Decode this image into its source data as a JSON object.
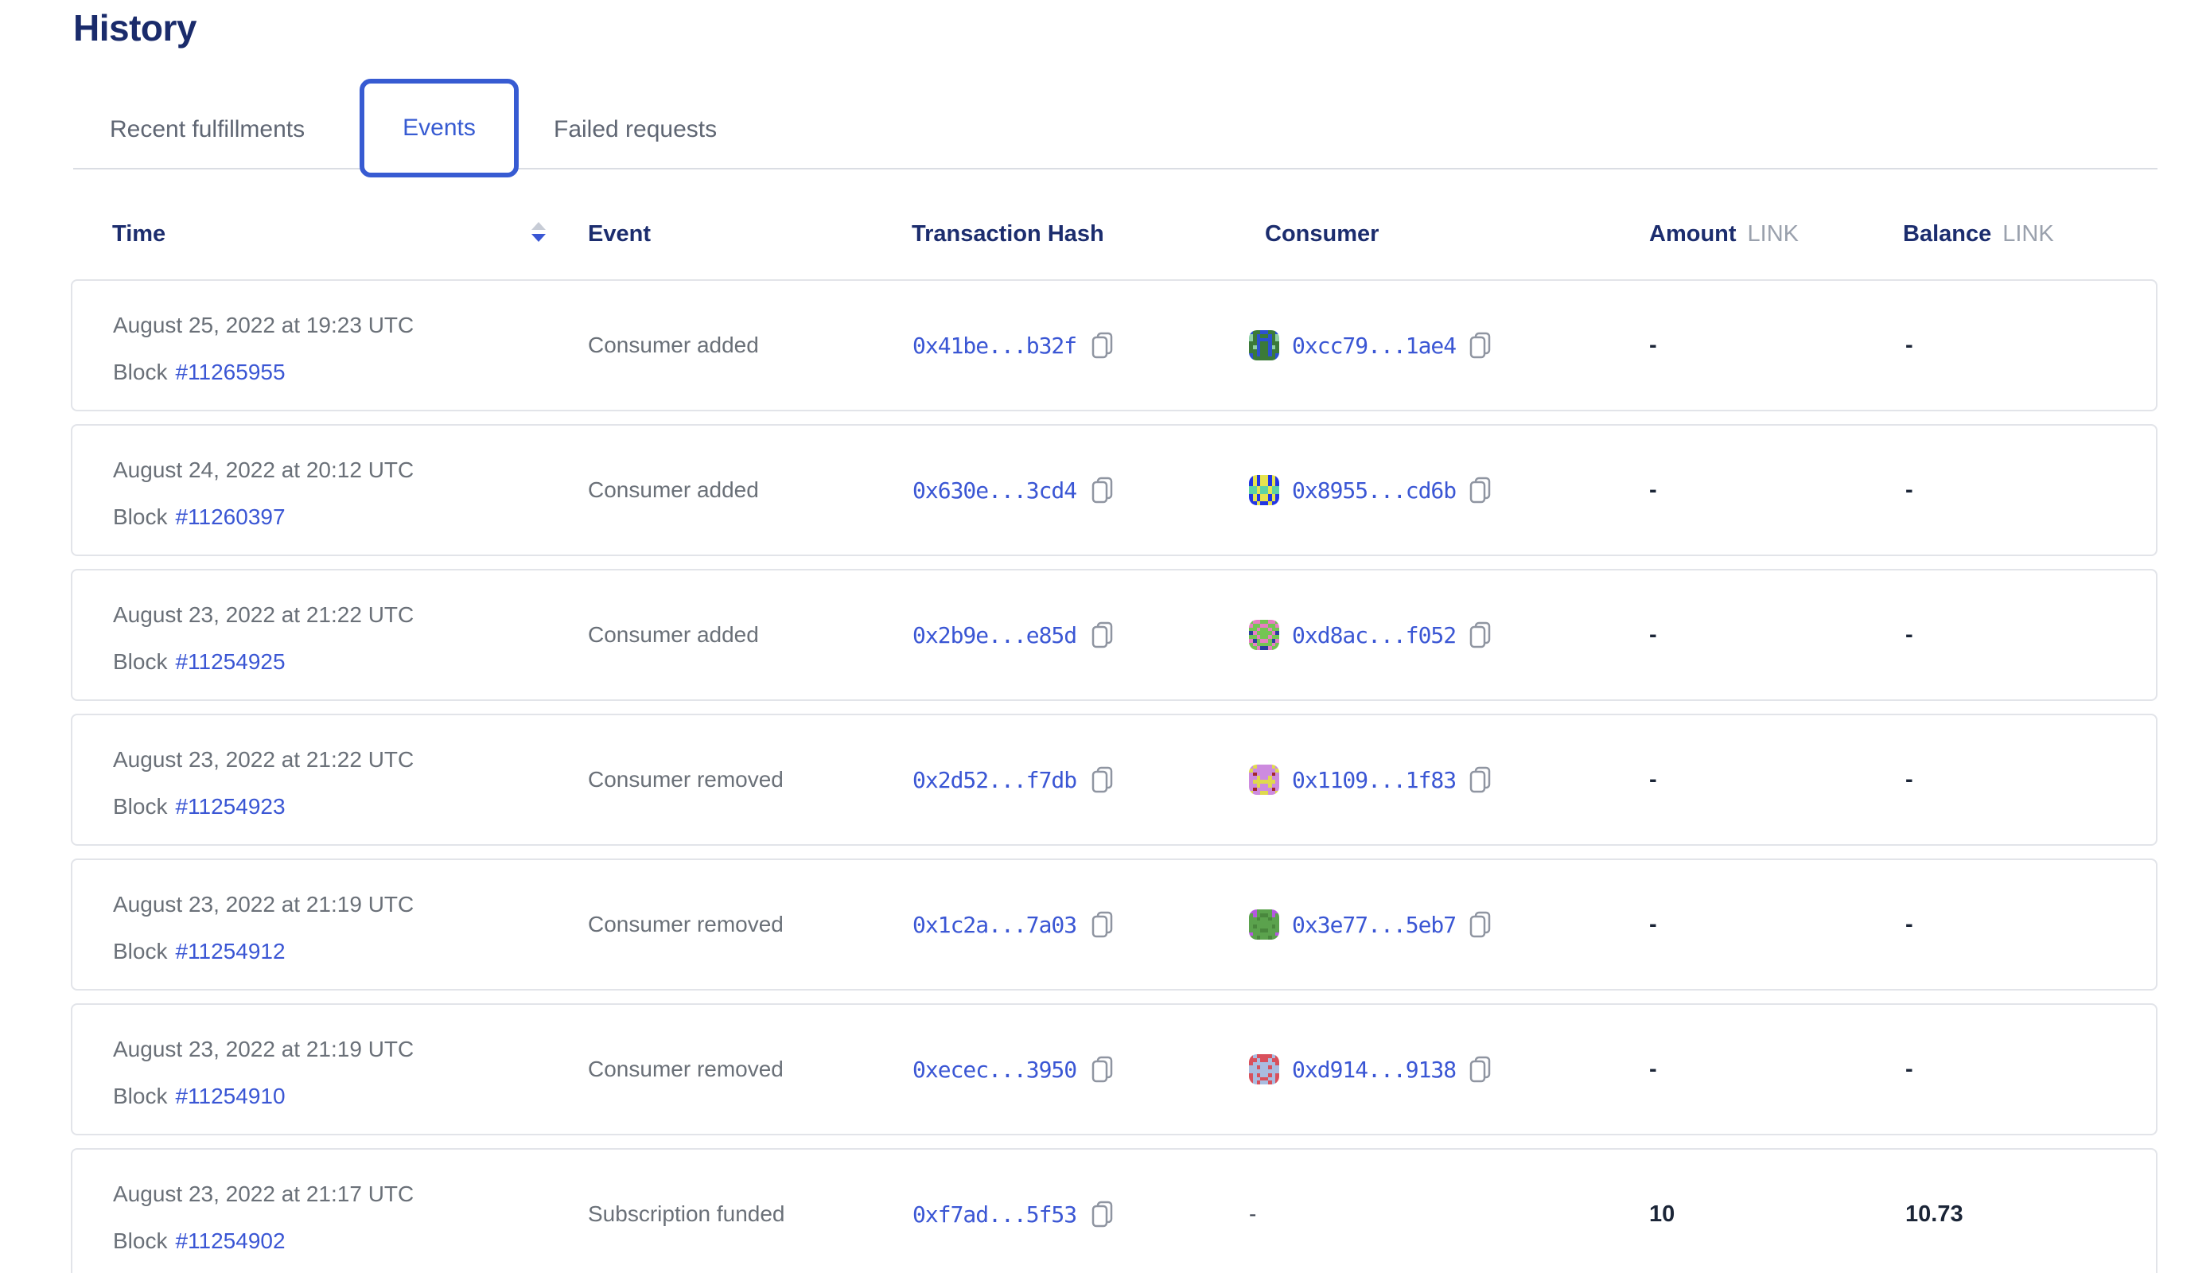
{
  "page": {
    "title": "History"
  },
  "colors": {
    "accent_blue": "#375bd2",
    "link_blue": "#3a56d4",
    "heading_navy": "#1a2b6b",
    "text_gray": "#6a7078",
    "card_border": "#e2e4e9"
  },
  "tabs": [
    {
      "label": "Recent fulfillments",
      "active": false
    },
    {
      "label": "Events",
      "active": true
    },
    {
      "label": "Failed requests",
      "active": false
    }
  ],
  "table": {
    "columns": {
      "time": "Time",
      "event": "Event",
      "tx": "Transaction Hash",
      "consumer": "Consumer",
      "amount": "Amount",
      "balance": "Balance",
      "unit": "LINK"
    },
    "sort": {
      "column": "Time",
      "direction": "descending"
    },
    "block_label": "Block",
    "rows": [
      {
        "date": "August 25, 2022 at 19:23 UTC",
        "block": "#11265955",
        "event": "Consumer added",
        "tx_hash": "0x41be...b32f",
        "consumer": "0xcc79...1ae4",
        "amount": "-",
        "balance": "-",
        "blockie": {
          "palette": {
            "a": "#3b7a38",
            "b": "#2c51cf",
            "c": "#8fd0a6"
          },
          "grid": [
            "baabbaab",
            "cabaabac",
            "cabbbbac",
            "aabaabaa",
            "acbaabca",
            "aabaabaa",
            "babaabab",
            "baaaaaab"
          ]
        }
      },
      {
        "date": "August 24, 2022 at 20:12 UTC",
        "block": "#11260397",
        "event": "Consumer added",
        "tx_hash": "0x630e...3cd4",
        "consumer": "0x8955...cd6b",
        "amount": "-",
        "balance": "-",
        "blockie": {
          "palette": {
            "b": "#2336e3",
            "y": "#e6e34e",
            "t": "#5ed3a3"
          },
          "grid": [
            "bybyybyb",
            "bybyybyb",
            "bybyybyb",
            "ttyttytt",
            "ttyttytt",
            "bybyybyb",
            "bybyybyb",
            "bbybbybb"
          ]
        }
      },
      {
        "date": "August 23, 2022 at 21:22 UTC",
        "block": "#11254925",
        "event": "Consumer added",
        "tx_hash": "0x2b9e...e85d",
        "consumer": "0xd8ac...f052",
        "amount": "-",
        "balance": "-",
        "blockie": {
          "palette": {
            "g": "#74c553",
            "p": "#e77fc2",
            "n": "#2b3f9e"
          },
          "grid": [
            "gppggppg",
            "pggppggp",
            "ggpggpgg",
            "npggggpn",
            "ggpggpgg",
            "pngppgnp",
            "gpggggpg",
            "ggpnnpgg"
          ]
        }
      },
      {
        "date": "August 23, 2022 at 21:22 UTC",
        "block": "#11254923",
        "event": "Consumer removed",
        "tx_hash": "0x2d52...f7db",
        "consumer": "0x1109...1f83",
        "amount": "-",
        "balance": "-",
        "blockie": {
          "palette": {
            "v": "#cd8bdf",
            "y": "#dfd94e",
            "r": "#a3282b"
          },
          "grid": [
            "vyvvvvyv",
            "yvvvvvvy",
            "vrvvvvrv",
            "vvyvvyvv",
            "vyyyyyyv",
            "vvyvvyvv",
            "vrvvvvrv",
            "yvvyyvvy"
          ]
        }
      },
      {
        "date": "August 23, 2022 at 21:19 UTC",
        "block": "#11254912",
        "event": "Consumer removed",
        "tx_hash": "0x1c2a...7a03",
        "consumer": "0x3e77...5eb7",
        "amount": "-",
        "balance": "-",
        "blockie": {
          "palette": {
            "g": "#5ba24d",
            "p": "#b558e0",
            "d": "#49873d"
          },
          "grid": [
            "ppggggpp",
            "gpgddgpg",
            "ggdggdgg",
            "gggggggg",
            "gdggggdg",
            "gggddggg",
            "pggggggp",
            "ggdggdgg"
          ]
        }
      },
      {
        "date": "August 23, 2022 at 21:19 UTC",
        "block": "#11254910",
        "event": "Consumer removed",
        "tx_hash": "0xecec...3950",
        "consumer": "0xd914...9138",
        "amount": "-",
        "balance": "-",
        "blockie": {
          "palette": {
            "r": "#d8505c",
            "l": "#a9bce0"
          },
          "grid": [
            "rlrrrrlr",
            "rrlrrlrr",
            "rllllllr",
            "llrllrll",
            "llllllll",
            "rlrllrlr",
            "rllrrllr",
            "rlrllrlr"
          ]
        }
      },
      {
        "date": "August 23, 2022 at 21:17 UTC",
        "block": "#11254902",
        "event": "Subscription funded",
        "tx_hash": "0xf7ad...5f53",
        "consumer": null,
        "consumer_dash": "-",
        "amount": "10",
        "balance": "10.73",
        "blockie": null
      }
    ]
  }
}
